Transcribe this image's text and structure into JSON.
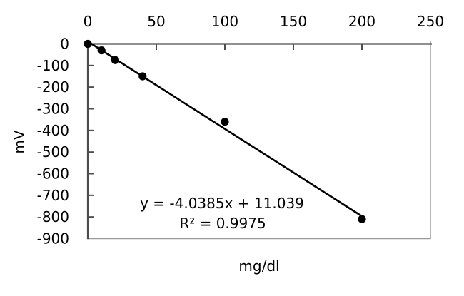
{
  "chart_data": {
    "type": "scatter",
    "title": "",
    "xlabel": "mg/dl",
    "ylabel": "mV",
    "x": [
      0,
      10,
      20,
      40,
      100,
      200
    ],
    "y": [
      0,
      -30,
      -75,
      -150,
      -360,
      -810
    ],
    "xlim": [
      0,
      250
    ],
    "ylim": [
      -900,
      0
    ],
    "x_ticks": [
      0,
      50,
      100,
      150,
      200,
      250
    ],
    "y_ticks": [
      0,
      -100,
      -200,
      -300,
      -400,
      -500,
      -600,
      -700,
      -800,
      -900
    ],
    "grid": false,
    "legend": false,
    "marker_shape": "filled-circle",
    "trendline": {
      "slope": -4.0385,
      "intercept": 11.039,
      "x_start": 0,
      "x_end": 200,
      "equation_text": "y = -4.0385x + 11.039",
      "r_squared_text": "R² = 0.9975"
    },
    "colors": {
      "marker": "#000000",
      "trendline": "#000000",
      "axis": "#4d4d4d",
      "plot_border": "#999999",
      "text": "#000000",
      "background": "#ffffff"
    }
  }
}
